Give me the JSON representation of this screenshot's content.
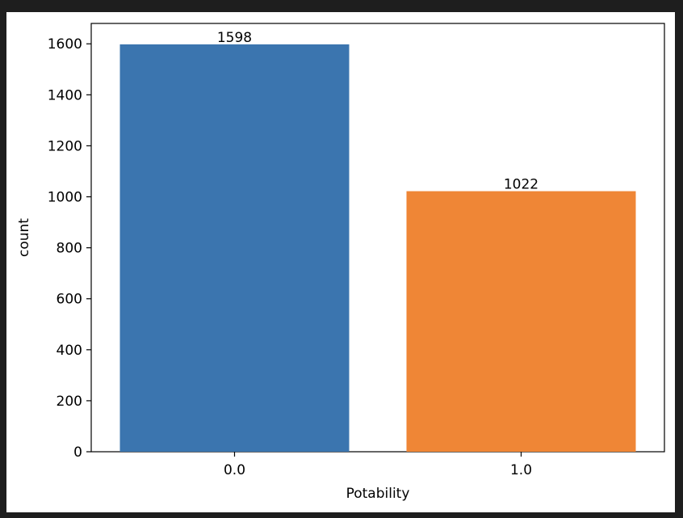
{
  "chart_data": {
    "type": "bar",
    "categories": [
      "0.0",
      "1.0"
    ],
    "values": [
      1598,
      1022
    ],
    "data_labels": [
      "1598",
      "1022"
    ],
    "title": "",
    "xlabel": "Potability",
    "ylabel": "count",
    "ylim": [
      0,
      1680
    ],
    "yticks": [
      0,
      200,
      400,
      600,
      800,
      1000,
      1200,
      1400,
      1600
    ],
    "ytick_labels": [
      "0",
      "200",
      "400",
      "600",
      "800",
      "1000",
      "1200",
      "1400",
      "1600"
    ],
    "colors": [
      "#3b75af",
      "#ef8636"
    ],
    "grid": false,
    "legend": "none"
  }
}
